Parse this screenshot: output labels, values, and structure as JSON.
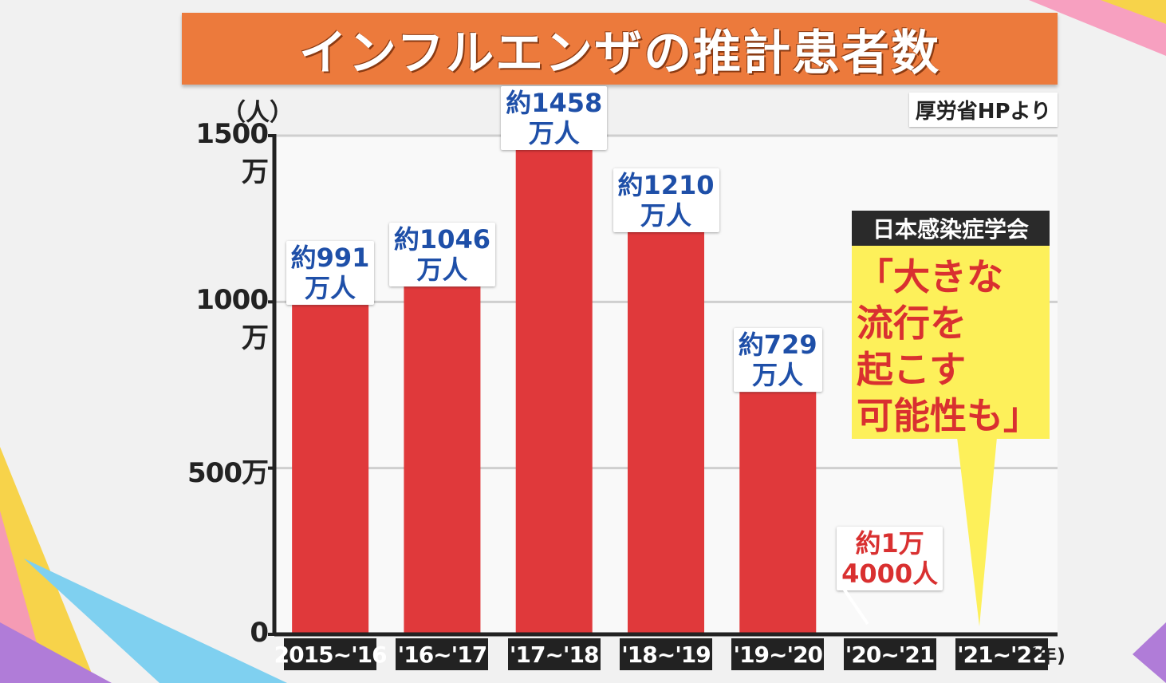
{
  "title": "インフルエンザの推計患者数",
  "source": "厚労省HPより",
  "y_unit": "（人）",
  "x_unit": "(年)",
  "callout": {
    "header": "日本感染症学会",
    "lines": [
      "「大きな",
      "流行を",
      "起こす",
      "可能性も」"
    ]
  },
  "colors": {
    "bar": "#e0393b",
    "title_bg": "#ec7a3c",
    "label_blue": "#1e4fa8",
    "label_red": "#d93030",
    "callout_bg": "#fdf05a"
  },
  "chart_data": {
    "type": "bar",
    "categories": [
      "2015~'16",
      "'16~'17",
      "'17~'18",
      "'18~'19",
      "'19~'20",
      "'20~'21",
      "'21~'22"
    ],
    "values": [
      9910000,
      10460000,
      14580000,
      12100000,
      7290000,
      14000,
      null
    ],
    "value_labels": [
      [
        "約991",
        "万人"
      ],
      [
        "約1046",
        "万人"
      ],
      [
        "約1458",
        "万人"
      ],
      [
        "約1210",
        "万人"
      ],
      [
        "約729",
        "万人"
      ],
      [
        "約1万",
        "4000人"
      ],
      []
    ],
    "ylim": [
      0,
      15000000
    ],
    "yticks": [
      0,
      5000000,
      10000000,
      15000000
    ],
    "ytick_labels": [
      "0",
      "500万",
      "1000万",
      "1500万"
    ],
    "grid": true
  }
}
